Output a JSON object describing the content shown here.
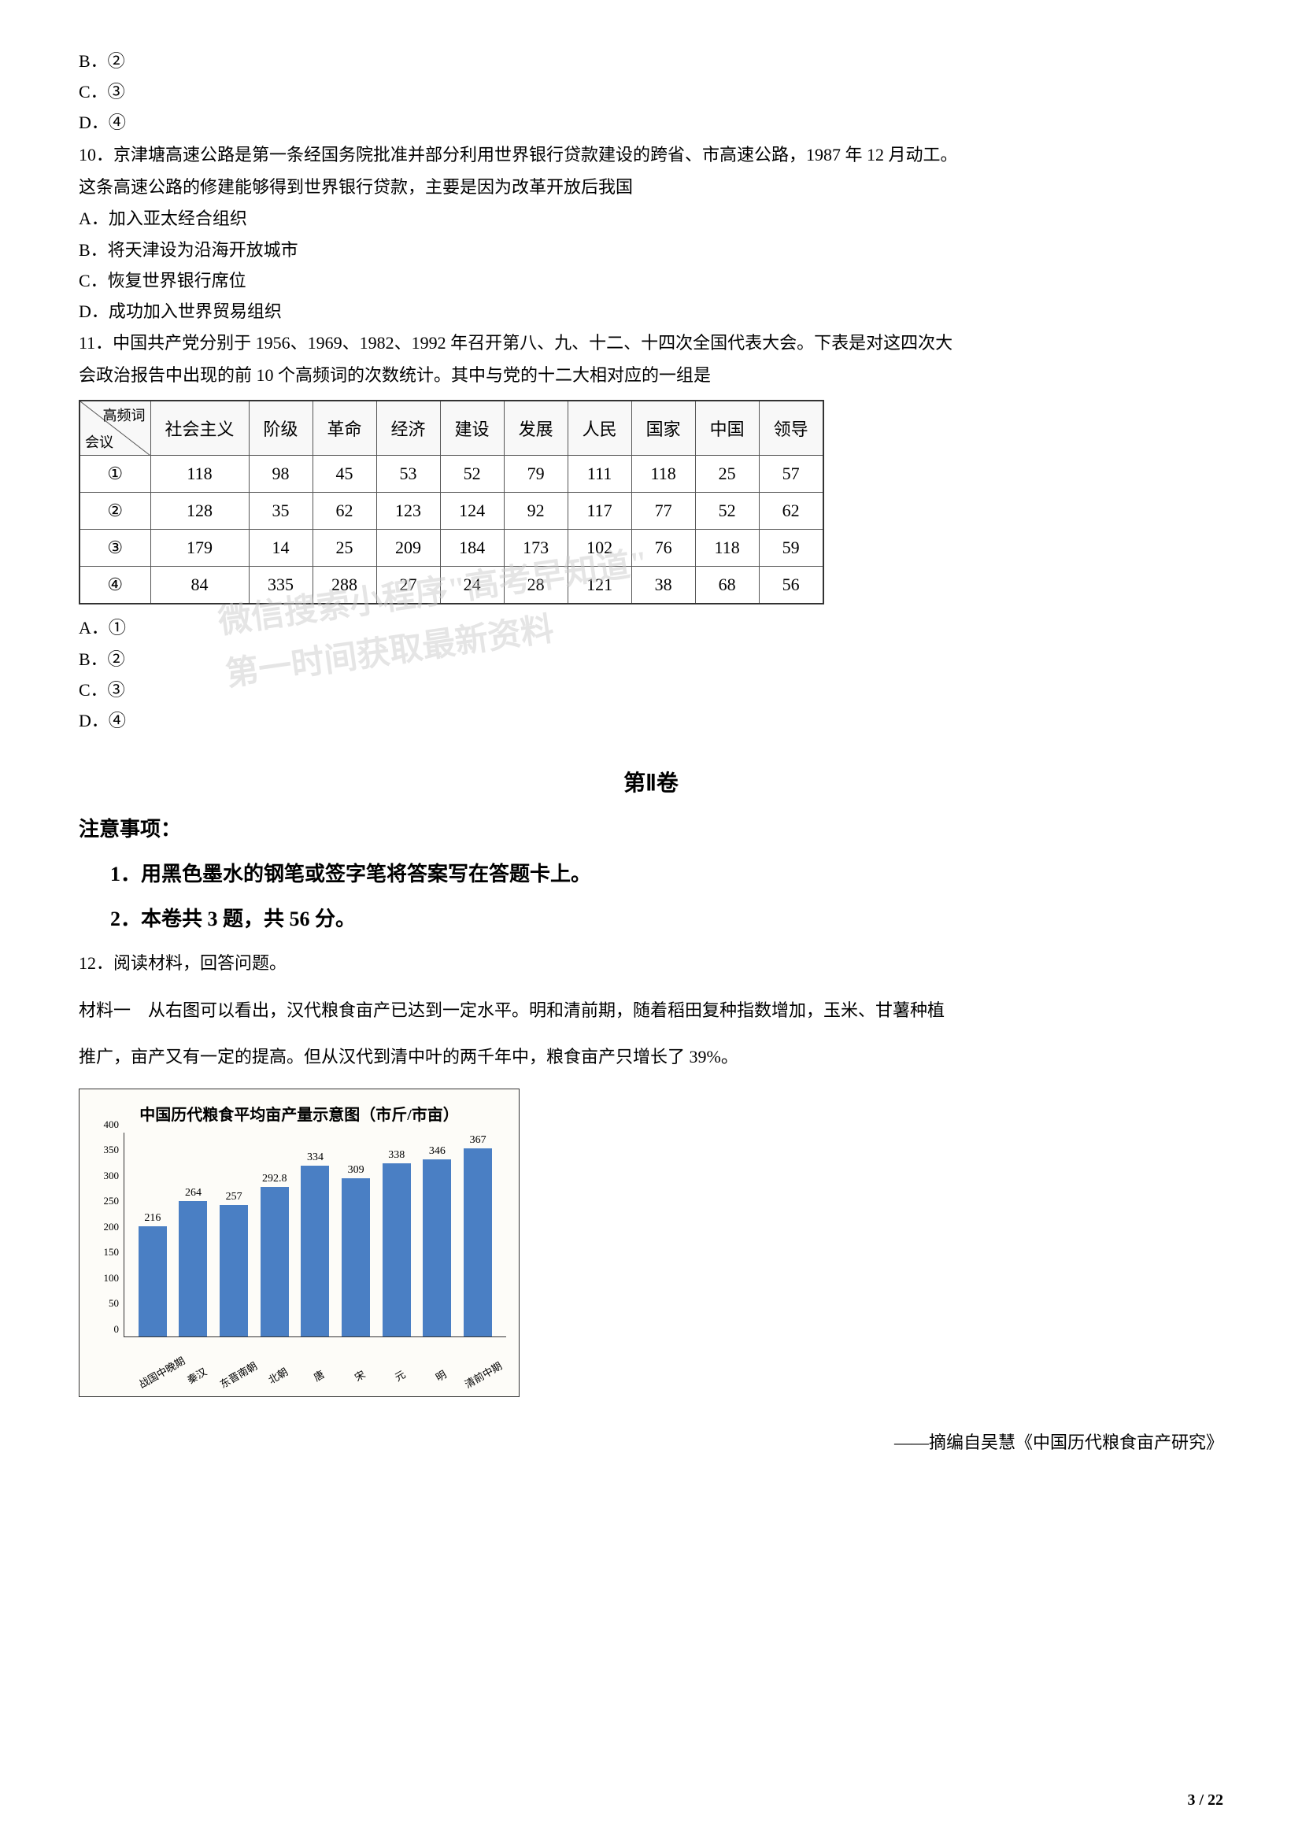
{
  "q9_options": {
    "b": "B．②",
    "c": "C．③",
    "d": "D．④"
  },
  "q10": {
    "text1": "10．京津塘高速公路是第一条经国务院批准并部分利用世界银行贷款建设的跨省、市高速公路，1987 年 12 月动工。",
    "text2": "这条高速公路的修建能够得到世界银行贷款，主要是因为改革开放后我国",
    "a": "A．加入亚太经合组织",
    "b": "B．将天津设为沿海开放城市",
    "c": "C．恢复世界银行席位",
    "d": "D．成功加入世界贸易组织"
  },
  "q11": {
    "text1": "11．中国共产党分别于 1956、1969、1982、1992 年召开第八、九、十二、十四次全国代表大会。下表是对这四次大",
    "text2": "会政治报告中出现的前 10 个高频词的次数统计。其中与党的十二大相对应的一组是",
    "a": "A．①",
    "b": "B．②",
    "c": "C．③",
    "d": "D．④"
  },
  "table": {
    "header_diag_top": "高频词",
    "header_diag_bottom": "会议",
    "columns": [
      "社会主义",
      "阶级",
      "革命",
      "经济",
      "建设",
      "发展",
      "人民",
      "国家",
      "中国",
      "领导"
    ],
    "rows": [
      {
        "label": "①",
        "values": [
          118,
          98,
          45,
          53,
          52,
          79,
          111,
          118,
          25,
          57
        ]
      },
      {
        "label": "②",
        "values": [
          128,
          35,
          62,
          123,
          124,
          92,
          117,
          77,
          52,
          62
        ]
      },
      {
        "label": "③",
        "values": [
          179,
          14,
          25,
          209,
          184,
          173,
          102,
          76,
          118,
          59
        ]
      },
      {
        "label": "④",
        "values": [
          84,
          335,
          288,
          27,
          24,
          28,
          121,
          38,
          68,
          56
        ]
      }
    ]
  },
  "section2": {
    "title": "第Ⅱ卷",
    "notice": "注意事项：",
    "item1": "1．用黑色墨水的钢笔或签字笔将答案写在答题卡上。",
    "item2": "2．本卷共 3 题，共 56 分。"
  },
  "q12": {
    "intro": "12．阅读材料，回答问题。",
    "material1_1": "材料一　从右图可以看出，汉代粮食亩产已达到一定水平。明和清前期，随着稻田复种指数增加，玉米、甘薯种植",
    "material1_2": "推广，亩产又有一定的提高。但从汉代到清中叶的两千年中，粮食亩产只增长了 39%。"
  },
  "chart": {
    "title": "中国历代粮食平均亩产量示意图（市斤/市亩）",
    "type": "bar",
    "categories": [
      "战国中晚期",
      "秦汉",
      "东晋南朝",
      "北朝",
      "唐",
      "宋",
      "元",
      "明",
      "清前中期"
    ],
    "values": [
      216,
      264,
      257,
      "292.8",
      334,
      309,
      338,
      346,
      367
    ],
    "bar_color": "#4a7fc4",
    "ylim": [
      0,
      400
    ],
    "ytick_step": 50,
    "yticks": [
      0,
      50,
      100,
      150,
      200,
      250,
      300,
      350,
      400
    ],
    "background_color": "#fdfcf8",
    "border_color": "#333333",
    "title_fontsize": 20,
    "label_fontsize": 13
  },
  "citation": "——摘编自吴慧《中国历代粮食亩产研究》",
  "page_num": "3 / 22",
  "watermark": {
    "line1": "微信搜索小程序\"高考早知道\"",
    "line2": "第一时间获取最新资料"
  }
}
